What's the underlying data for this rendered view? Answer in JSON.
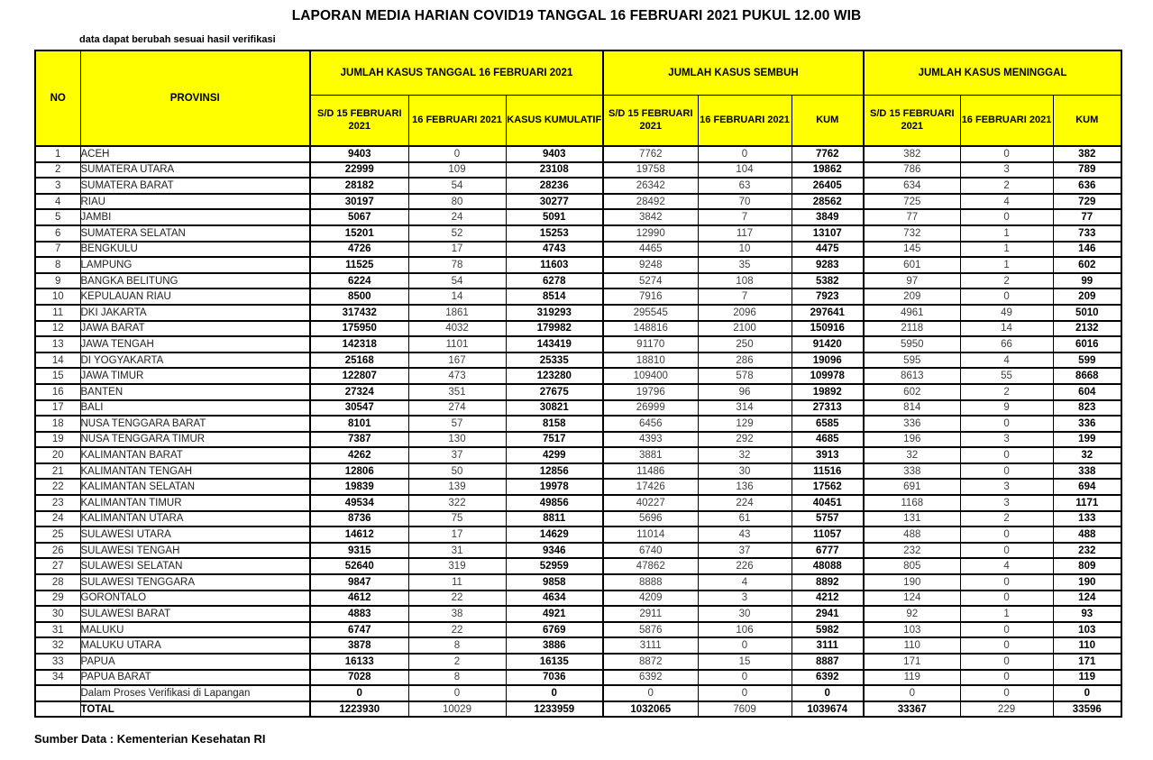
{
  "page": {
    "title": "LAPORAN MEDIA HARIAN COVID19 TANGGAL 16 FEBRUARI 2021 PUKUL 12.00 WIB",
    "note": "data dapat berubah sesuai hasil verifikasi",
    "source": "Sumber Data : Kementerian Kesehatan RI"
  },
  "colors": {
    "header_bg": "#FFFF00",
    "border": "#000000",
    "bold_text": "#000000",
    "regular_text": "#3d3d3d"
  },
  "table": {
    "headers": {
      "no": "NO",
      "provinsi": "PROVINSI",
      "group_kasus": "JUMLAH KASUS TANGGAL 16 FEBRUARI 2021",
      "group_sembuh": "JUMLAH KASUS SEMBUH",
      "group_meninggal": "JUMLAH KASUS MENINGGAL",
      "sub_sd15": "S/D 15 FEBRUARI 2021",
      "sub_16feb": "16 FEBRUARI 2021",
      "sub_kasus_kumulatif": "KASUS KUMULATIF",
      "sub_kum": "KUM"
    },
    "rows": [
      [
        "1",
        "ACEH",
        "9403",
        "0",
        "9403",
        "7762",
        "0",
        "7762",
        "382",
        "0",
        "382"
      ],
      [
        "2",
        "SUMATERA UTARA",
        "22999",
        "109",
        "23108",
        "19758",
        "104",
        "19862",
        "786",
        "3",
        "789"
      ],
      [
        "3",
        "SUMATERA BARAT",
        "28182",
        "54",
        "28236",
        "26342",
        "63",
        "26405",
        "634",
        "2",
        "636"
      ],
      [
        "4",
        "RIAU",
        "30197",
        "80",
        "30277",
        "28492",
        "70",
        "28562",
        "725",
        "4",
        "729"
      ],
      [
        "5",
        "JAMBI",
        "5067",
        "24",
        "5091",
        "3842",
        "7",
        "3849",
        "77",
        "0",
        "77"
      ],
      [
        "6",
        "SUMATERA SELATAN",
        "15201",
        "52",
        "15253",
        "12990",
        "117",
        "13107",
        "732",
        "1",
        "733"
      ],
      [
        "7",
        "BENGKULU",
        "4726",
        "17",
        "4743",
        "4465",
        "10",
        "4475",
        "145",
        "1",
        "146"
      ],
      [
        "8",
        "LAMPUNG",
        "11525",
        "78",
        "11603",
        "9248",
        "35",
        "9283",
        "601",
        "1",
        "602"
      ],
      [
        "9",
        "BANGKA BELITUNG",
        "6224",
        "54",
        "6278",
        "5274",
        "108",
        "5382",
        "97",
        "2",
        "99"
      ],
      [
        "10",
        "KEPULAUAN RIAU",
        "8500",
        "14",
        "8514",
        "7916",
        "7",
        "7923",
        "209",
        "0",
        "209"
      ],
      [
        "11",
        "DKI JAKARTA",
        "317432",
        "1861",
        "319293",
        "295545",
        "2096",
        "297641",
        "4961",
        "49",
        "5010"
      ],
      [
        "12",
        "JAWA BARAT",
        "175950",
        "4032",
        "179982",
        "148816",
        "2100",
        "150916",
        "2118",
        "14",
        "2132"
      ],
      [
        "13",
        "JAWA TENGAH",
        "142318",
        "1101",
        "143419",
        "91170",
        "250",
        "91420",
        "5950",
        "66",
        "6016"
      ],
      [
        "14",
        "DI YOGYAKARTA",
        "25168",
        "167",
        "25335",
        "18810",
        "286",
        "19096",
        "595",
        "4",
        "599"
      ],
      [
        "15",
        "JAWA TIMUR",
        "122807",
        "473",
        "123280",
        "109400",
        "578",
        "109978",
        "8613",
        "55",
        "8668"
      ],
      [
        "16",
        "BANTEN",
        "27324",
        "351",
        "27675",
        "19796",
        "96",
        "19892",
        "602",
        "2",
        "604"
      ],
      [
        "17",
        "BALI",
        "30547",
        "274",
        "30821",
        "26999",
        "314",
        "27313",
        "814",
        "9",
        "823"
      ],
      [
        "18",
        "NUSA TENGGARA BARAT",
        "8101",
        "57",
        "8158",
        "6456",
        "129",
        "6585",
        "336",
        "0",
        "336"
      ],
      [
        "19",
        "NUSA TENGGARA TIMUR",
        "7387",
        "130",
        "7517",
        "4393",
        "292",
        "4685",
        "196",
        "3",
        "199"
      ],
      [
        "20",
        "KALIMANTAN BARAT",
        "4262",
        "37",
        "4299",
        "3881",
        "32",
        "3913",
        "32",
        "0",
        "32"
      ],
      [
        "21",
        "KALIMANTAN TENGAH",
        "12806",
        "50",
        "12856",
        "11486",
        "30",
        "11516",
        "338",
        "0",
        "338"
      ],
      [
        "22",
        "KALIMANTAN SELATAN",
        "19839",
        "139",
        "19978",
        "17426",
        "136",
        "17562",
        "691",
        "3",
        "694"
      ],
      [
        "23",
        "KALIMANTAN TIMUR",
        "49534",
        "322",
        "49856",
        "40227",
        "224",
        "40451",
        "1168",
        "3",
        "1171"
      ],
      [
        "24",
        "KALIMANTAN UTARA",
        "8736",
        "75",
        "8811",
        "5696",
        "61",
        "5757",
        "131",
        "2",
        "133"
      ],
      [
        "25",
        "SULAWESI UTARA",
        "14612",
        "17",
        "14629",
        "11014",
        "43",
        "11057",
        "488",
        "0",
        "488"
      ],
      [
        "26",
        "SULAWESI TENGAH",
        "9315",
        "31",
        "9346",
        "6740",
        "37",
        "6777",
        "232",
        "0",
        "232"
      ],
      [
        "27",
        "SULAWESI SELATAN",
        "52640",
        "319",
        "52959",
        "47862",
        "226",
        "48088",
        "805",
        "4",
        "809"
      ],
      [
        "28",
        "SULAWESI TENGGARA",
        "9847",
        "11",
        "9858",
        "8888",
        "4",
        "8892",
        "190",
        "0",
        "190"
      ],
      [
        "29",
        "GORONTALO",
        "4612",
        "22",
        "4634",
        "4209",
        "3",
        "4212",
        "124",
        "0",
        "124"
      ],
      [
        "30",
        "SULAWESI BARAT",
        "4883",
        "38",
        "4921",
        "2911",
        "30",
        "2941",
        "92",
        "1",
        "93"
      ],
      [
        "31",
        "MALUKU",
        "6747",
        "22",
        "6769",
        "5876",
        "106",
        "5982",
        "103",
        "0",
        "103"
      ],
      [
        "32",
        "MALUKU UTARA",
        "3878",
        "8",
        "3886",
        "3111",
        "0",
        "3111",
        "110",
        "0",
        "110"
      ],
      [
        "33",
        "PAPUA",
        "16133",
        "2",
        "16135",
        "8872",
        "15",
        "8887",
        "171",
        "0",
        "171"
      ],
      [
        "34",
        "PAPUA BARAT",
        "7028",
        "8",
        "7036",
        "6392",
        "0",
        "6392",
        "119",
        "0",
        "119"
      ]
    ],
    "verification_row": {
      "label": "Dalam Proses Verifikasi di Lapangan",
      "values": [
        "0",
        "0",
        "0",
        "0",
        "0",
        "0",
        "0",
        "0",
        "0"
      ]
    },
    "total_row": {
      "label": "TOTAL",
      "values": [
        "1223930",
        "10029",
        "1233959",
        "1032065",
        "7609",
        "1039674",
        "33367",
        "229",
        "33596"
      ]
    }
  }
}
